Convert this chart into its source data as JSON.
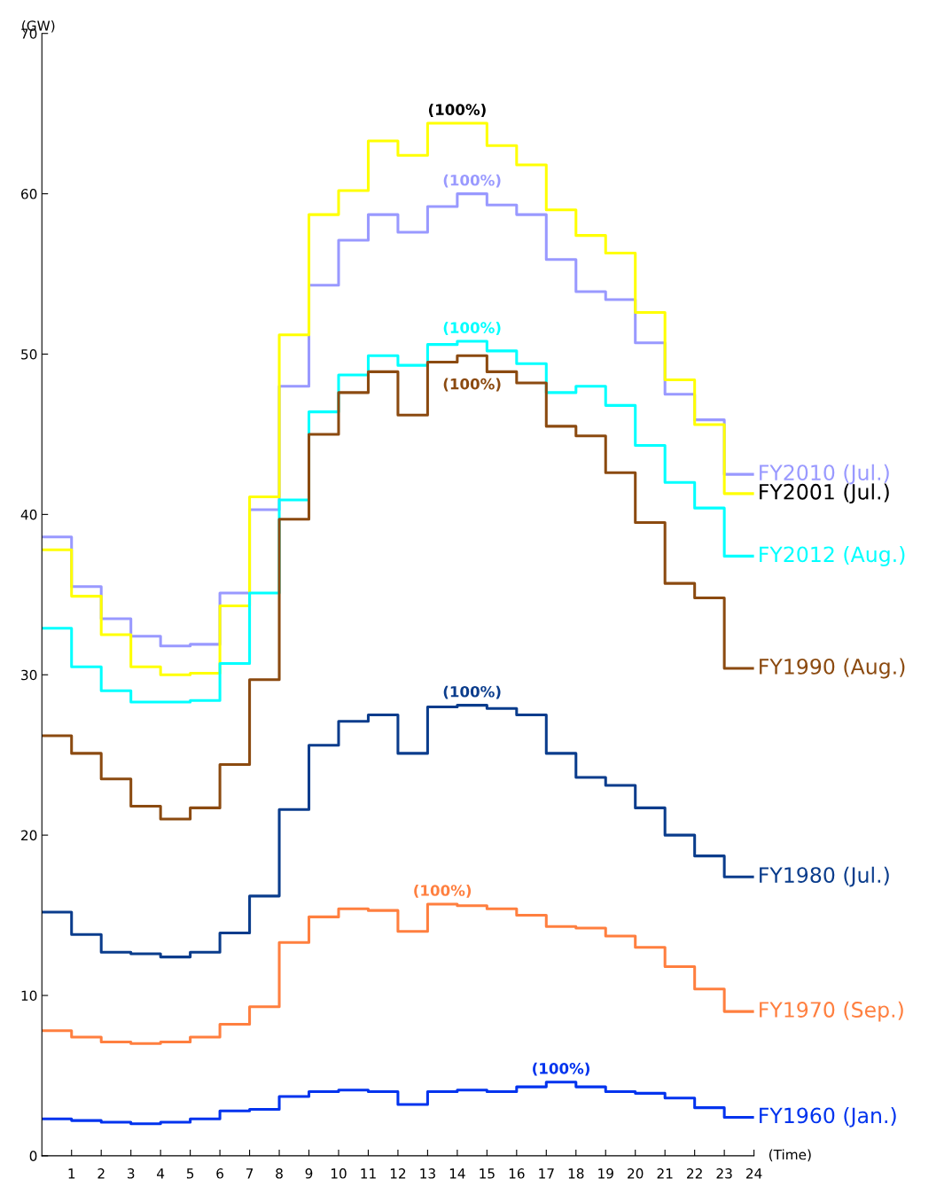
{
  "chart_data": {
    "type": "line",
    "xlabel": "(Time)",
    "ylabel": "(GW)",
    "x": [
      0,
      1,
      1,
      2,
      2,
      3,
      3,
      4,
      4,
      5,
      5,
      6,
      6,
      7,
      7,
      8,
      8,
      9,
      9,
      10,
      10,
      11,
      11,
      12,
      12,
      13,
      13,
      14,
      14,
      15,
      15,
      16,
      16,
      17,
      17,
      18,
      18,
      19,
      19,
      20,
      20,
      21,
      21,
      22,
      22,
      23,
      23,
      24
    ],
    "xlim": [
      0,
      24
    ],
    "xticks": [
      1,
      2,
      3,
      4,
      5,
      6,
      7,
      8,
      9,
      10,
      11,
      12,
      13,
      14,
      15,
      16,
      17,
      18,
      19,
      20,
      21,
      22,
      23,
      24
    ],
    "ylim": [
      0,
      70
    ],
    "yticks": [
      0,
      10,
      20,
      30,
      40,
      50,
      60,
      70
    ],
    "grid": false,
    "legend": false,
    "marker": "none",
    "line_style": "solid",
    "series": [
      {
        "name": "FY2010 (Jul.)",
        "color": "#9999ff",
        "values": [
          38.6,
          38.6,
          35.5,
          35.5,
          33.5,
          33.5,
          32.4,
          32.4,
          31.8,
          31.8,
          31.9,
          31.9,
          35.1,
          35.1,
          40.3,
          40.3,
          48.0,
          48.0,
          54.3,
          54.3,
          57.1,
          57.1,
          58.7,
          58.7,
          57.6,
          57.6,
          59.2,
          59.2,
          60.0,
          60.0,
          59.3,
          59.3,
          58.7,
          58.7,
          55.9,
          55.9,
          53.9,
          53.9,
          53.4,
          53.4,
          50.7,
          50.7,
          47.5,
          47.5,
          45.9,
          45.9,
          42.5,
          42.5
        ]
      },
      {
        "name": "FY2001 (Jul.)",
        "color": "#ffff00",
        "values": [
          37.8,
          37.8,
          34.9,
          34.9,
          32.5,
          32.5,
          30.5,
          30.5,
          30.0,
          30.0,
          30.1,
          30.1,
          34.3,
          34.3,
          41.1,
          41.1,
          51.2,
          51.2,
          58.7,
          58.7,
          60.2,
          60.2,
          63.3,
          63.3,
          62.4,
          62.4,
          64.4,
          64.4,
          64.4,
          64.4,
          63.0,
          63.0,
          61.8,
          61.8,
          59.0,
          59.0,
          57.4,
          57.4,
          56.3,
          56.3,
          52.6,
          52.6,
          48.4,
          48.4,
          45.6,
          45.6,
          41.3,
          41.3
        ]
      },
      {
        "name": "FY2012 (Aug.)",
        "color": "#00ffff",
        "values": [
          32.9,
          32.9,
          30.5,
          30.5,
          29.0,
          29.0,
          28.3,
          28.3,
          28.3,
          28.3,
          28.4,
          28.4,
          30.7,
          30.7,
          35.1,
          35.1,
          40.9,
          40.9,
          46.4,
          46.4,
          48.7,
          48.7,
          49.9,
          49.9,
          49.3,
          49.3,
          50.6,
          50.6,
          50.8,
          50.8,
          50.2,
          50.2,
          49.4,
          49.4,
          47.6,
          47.6,
          48.0,
          48.0,
          46.8,
          46.8,
          44.3,
          44.3,
          42.0,
          42.0,
          40.4,
          40.4,
          37.4,
          37.4
        ]
      },
      {
        "name": "FY1990 (Aug.)",
        "color": "#8b4a10",
        "values": [
          26.2,
          26.2,
          25.1,
          25.1,
          23.5,
          23.5,
          21.8,
          21.8,
          21.0,
          21.0,
          21.7,
          21.7,
          24.4,
          24.4,
          29.7,
          29.7,
          39.7,
          39.7,
          45.0,
          45.0,
          47.6,
          47.6,
          48.9,
          48.9,
          46.2,
          46.2,
          49.5,
          49.5,
          49.9,
          49.9,
          48.9,
          48.9,
          48.2,
          48.2,
          45.5,
          45.5,
          44.9,
          44.9,
          42.6,
          42.6,
          39.5,
          39.5,
          35.7,
          35.7,
          34.8,
          34.8,
          30.4,
          30.4
        ]
      },
      {
        "name": "FY1980 (Jul.)",
        "color": "#0a3c8c",
        "values": [
          15.2,
          15.2,
          13.8,
          13.8,
          12.7,
          12.7,
          12.6,
          12.6,
          12.4,
          12.4,
          12.7,
          12.7,
          13.9,
          13.9,
          16.2,
          16.2,
          21.6,
          21.6,
          25.6,
          25.6,
          27.1,
          27.1,
          27.5,
          27.5,
          25.1,
          25.1,
          28.0,
          28.0,
          28.1,
          28.1,
          27.9,
          27.9,
          27.5,
          27.5,
          25.1,
          25.1,
          23.6,
          23.6,
          23.1,
          23.1,
          21.7,
          21.7,
          20.0,
          20.0,
          18.7,
          18.7,
          17.4,
          17.4
        ]
      },
      {
        "name": "FY1970 (Sep.)",
        "color": "#ff7f3f",
        "values": [
          7.8,
          7.8,
          7.4,
          7.4,
          7.1,
          7.1,
          7.0,
          7.0,
          7.1,
          7.1,
          7.4,
          7.4,
          8.2,
          8.2,
          9.3,
          9.3,
          13.3,
          13.3,
          14.9,
          14.9,
          15.4,
          15.4,
          15.3,
          15.3,
          14.0,
          14.0,
          15.7,
          15.7,
          15.6,
          15.6,
          15.4,
          15.4,
          15.0,
          15.0,
          14.3,
          14.3,
          14.2,
          14.2,
          13.7,
          13.7,
          13.0,
          13.0,
          11.8,
          11.8,
          10.4,
          10.4,
          9.0,
          9.0
        ]
      },
      {
        "name": "FY1960 (Jan.)",
        "color": "#0033ee",
        "values": [
          2.3,
          2.3,
          2.2,
          2.2,
          2.1,
          2.1,
          2.0,
          2.0,
          2.1,
          2.1,
          2.3,
          2.3,
          2.8,
          2.8,
          2.9,
          2.9,
          3.7,
          3.7,
          4.0,
          4.0,
          4.1,
          4.1,
          4.0,
          4.0,
          3.2,
          3.2,
          4.0,
          4.0,
          4.1,
          4.1,
          4.0,
          4.0,
          4.3,
          4.3,
          4.6,
          4.6,
          4.3,
          4.3,
          4.0,
          4.0,
          3.9,
          3.9,
          3.6,
          3.6,
          3.0,
          3.0,
          2.4,
          2.4
        ]
      }
    ],
    "annotations": [
      {
        "text": "(100%)",
        "x": 14,
        "y": 64.4
      },
      {
        "text": "(100%)",
        "x": 14,
        "y": 60.0
      },
      {
        "text": "(100%)",
        "x": 14,
        "y": 50.8
      },
      {
        "text": "(100%)",
        "x": 14,
        "y": 49.9
      },
      {
        "text": "(100%)",
        "x": 14,
        "y": 28.1
      },
      {
        "text": "(100%)",
        "x": 13,
        "y": 15.7
      },
      {
        "text": "(100%)",
        "x": 17,
        "y": 4.6
      }
    ]
  }
}
